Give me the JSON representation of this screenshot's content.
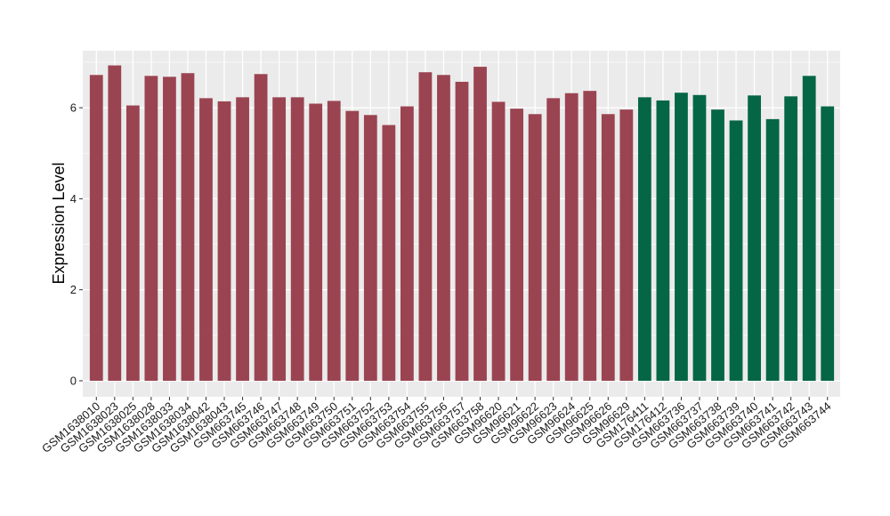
{
  "chart_data": {
    "type": "bar",
    "title": "",
    "xlabel": "",
    "ylabel": "Expression Level",
    "ylim": [
      0,
      7.2
    ],
    "yticks": [
      0,
      2,
      4,
      6
    ],
    "grid": true,
    "legend": "none",
    "colors": {
      "panel": "#EBEBEB",
      "grid": "#FFFFFF",
      "group1": "#9B4451",
      "group2": "#056645"
    },
    "categories": [
      "GSM1638010",
      "GSM1638023",
      "GSM1638025",
      "GSM1638028",
      "GSM1638033",
      "GSM1638034",
      "GSM1638042",
      "GSM1638043",
      "GSM663745",
      "GSM663746",
      "GSM663747",
      "GSM663748",
      "GSM663749",
      "GSM663750",
      "GSM663751",
      "GSM663752",
      "GSM663753",
      "GSM663754",
      "GSM663755",
      "GSM663756",
      "GSM663757",
      "GSM663758",
      "GSM96620",
      "GSM96621",
      "GSM96622",
      "GSM96623",
      "GSM96624",
      "GSM96625",
      "GSM96626",
      "GSM96629",
      "GSM176411",
      "GSM176412",
      "GSM663736",
      "GSM663737",
      "GSM663738",
      "GSM663739",
      "GSM663740",
      "GSM663741",
      "GSM663742",
      "GSM663743",
      "GSM663744"
    ],
    "values": [
      6.72,
      6.93,
      6.05,
      6.7,
      6.68,
      6.76,
      6.21,
      6.14,
      6.23,
      6.74,
      6.23,
      6.23,
      6.09,
      6.15,
      5.93,
      5.84,
      5.62,
      6.03,
      6.78,
      6.72,
      6.57,
      6.9,
      6.13,
      5.98,
      5.86,
      6.21,
      6.32,
      6.37,
      5.86,
      5.96,
      6.23,
      6.16,
      6.33,
      6.28,
      5.96,
      5.72,
      6.27,
      5.75,
      6.25,
      6.7,
      6.03
    ],
    "groups": [
      1,
      1,
      1,
      1,
      1,
      1,
      1,
      1,
      1,
      1,
      1,
      1,
      1,
      1,
      1,
      1,
      1,
      1,
      1,
      1,
      1,
      1,
      1,
      1,
      1,
      1,
      1,
      1,
      1,
      1,
      2,
      2,
      2,
      2,
      2,
      2,
      2,
      2,
      2,
      2,
      2
    ]
  }
}
